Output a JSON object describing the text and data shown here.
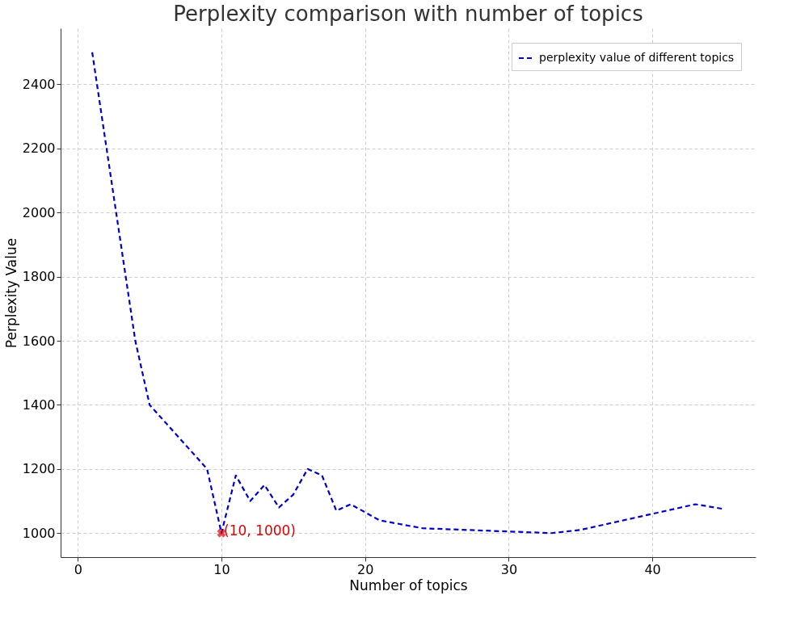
{
  "chart_data": {
    "type": "line",
    "title": "Perplexity comparison with number of topics",
    "xlabel": "Number of topics",
    "ylabel": "Perplexity Value",
    "series": [
      {
        "name": "perplexity value of different topics",
        "color": "#0000cc",
        "line_style": "dashed",
        "marker": "none",
        "x": [
          1,
          4,
          5,
          9,
          10,
          11,
          12,
          13,
          14,
          15,
          16,
          17,
          18,
          19,
          21,
          24,
          30,
          33,
          35,
          40,
          43,
          45
        ],
        "values": [
          2500,
          1600,
          1400,
          1200,
          1000,
          1180,
          1100,
          1150,
          1080,
          1120,
          1200,
          1180,
          1070,
          1090,
          1040,
          1015,
          1005,
          1000,
          1010,
          1060,
          1090,
          1075
        ]
      },
      {
        "type": "scatter",
        "color": "#dd0000",
        "marker": "cross",
        "x": [
          10
        ],
        "values": [
          1000
        ]
      }
    ],
    "annotations": [
      {
        "text": "(10, 1000)",
        "x": 10,
        "y": 1000
      }
    ],
    "xlim": [
      -1.2,
      47.2
    ],
    "ylim": [
      925,
      2575
    ],
    "xticks": [
      0,
      10,
      20,
      30,
      40
    ],
    "yticks": [
      1000,
      1200,
      1400,
      1600,
      1800,
      2000,
      2200,
      2400
    ],
    "grid": true,
    "legend": "top right"
  }
}
